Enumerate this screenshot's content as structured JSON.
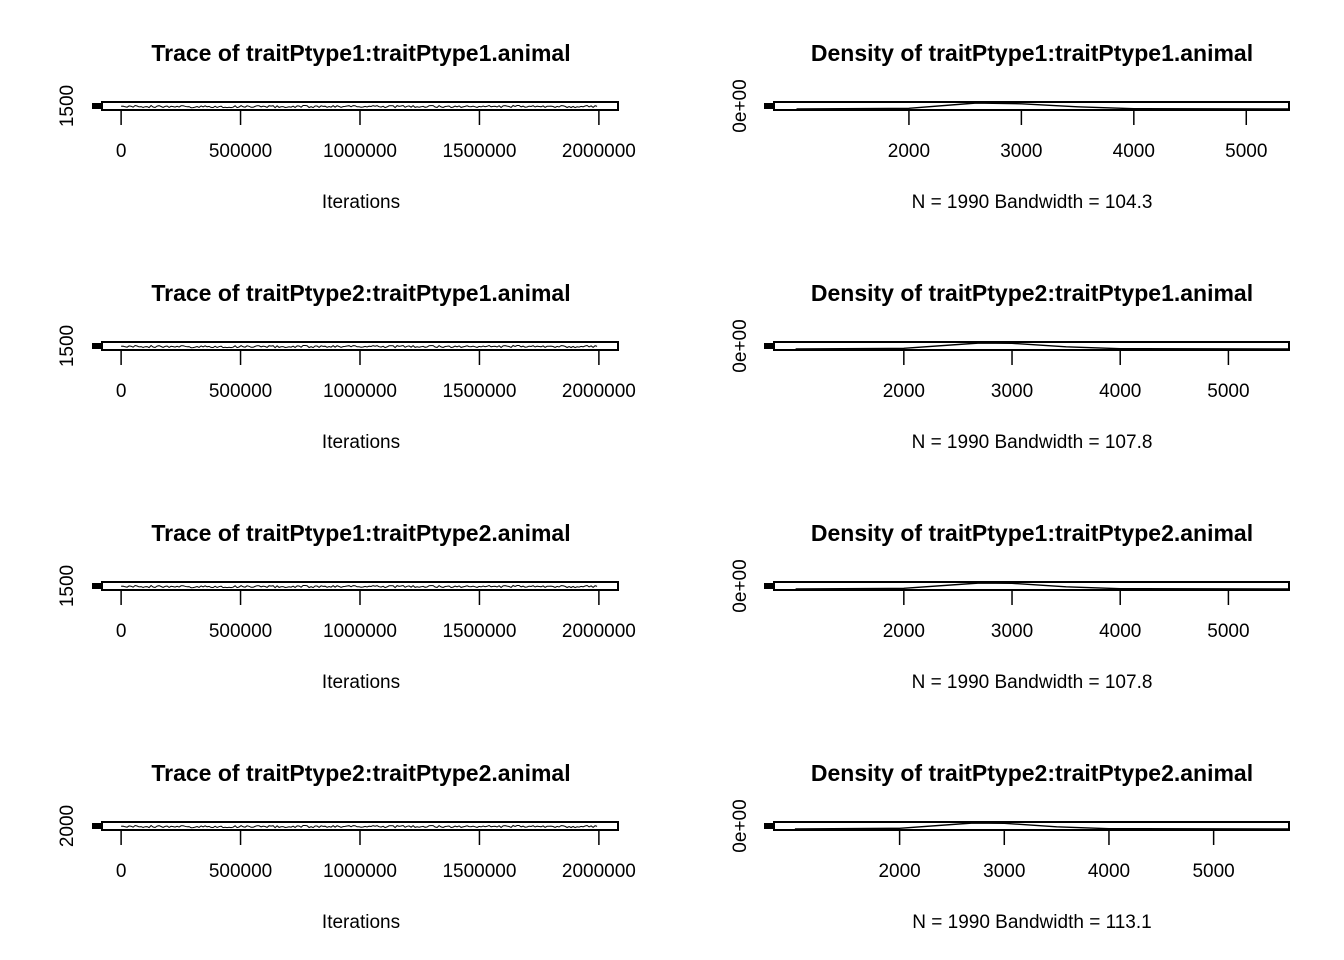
{
  "chart_data": [
    {
      "type": "line",
      "title": "Trace of traitPtype1:traitPtype1.animal",
      "xlabel": "Iterations",
      "xticks": [
        "0",
        "500000",
        "1000000",
        "1500000",
        "2000000"
      ],
      "xtick_values": [
        0,
        500000,
        1000000,
        1500000,
        2000000
      ],
      "xlim": [
        -80000,
        2080000
      ],
      "yticks": [
        "1500"
      ],
      "ytick_values": [
        1500
      ],
      "ylim": [
        -200000,
        2600000
      ],
      "grid": false
    },
    {
      "type": "area",
      "title": "Density of traitPtype1:traitPtype1.animal",
      "xlabel": "N = 1990   Bandwidth = 104.3",
      "xticks": [
        "2000",
        "3000",
        "4000",
        "5000"
      ],
      "xtick_values": [
        2000,
        3000,
        4000,
        5000
      ],
      "xlim": [
        800,
        5380
      ],
      "yticks": [
        "0e+00"
      ],
      "ytick_values": [
        0
      ],
      "curve": {
        "x": [
          1000,
          2000,
          2600,
          3000,
          3500,
          4000,
          5380
        ],
        "density": [
          0,
          5e-05,
          0.0004,
          0.00035,
          0.00015,
          2e-05,
          0
        ]
      },
      "grid": false
    },
    {
      "type": "line",
      "title": "Trace of traitPtype2:traitPtype1.animal",
      "xlabel": "Iterations",
      "xticks": [
        "0",
        "500000",
        "1000000",
        "1500000",
        "2000000"
      ],
      "xtick_values": [
        0,
        500000,
        1000000,
        1500000,
        2000000
      ],
      "xlim": [
        -80000,
        2080000
      ],
      "yticks": [
        "1500"
      ],
      "ytick_values": [
        1500
      ],
      "ylim": [
        -200000,
        2600000
      ],
      "grid": false
    },
    {
      "type": "area",
      "title": "Density of traitPtype2:traitPtype1.animal",
      "xlabel": "N = 1990   Bandwidth = 107.8",
      "xticks": [
        "2000",
        "3000",
        "4000",
        "5000"
      ],
      "xtick_values": [
        2000,
        3000,
        4000,
        5000
      ],
      "xlim": [
        800,
        5560
      ],
      "yticks": [
        "0e+00"
      ],
      "ytick_values": [
        0
      ],
      "curve": {
        "x": [
          1000,
          2000,
          2700,
          3000,
          3500,
          4000,
          5560
        ],
        "density": [
          0,
          5e-05,
          0.0004,
          0.00038,
          0.00015,
          2e-05,
          0
        ]
      },
      "grid": false
    },
    {
      "type": "line",
      "title": "Trace of traitPtype1:traitPtype2.animal",
      "xlabel": "Iterations",
      "xticks": [
        "0",
        "500000",
        "1000000",
        "1500000",
        "2000000"
      ],
      "xtick_values": [
        0,
        500000,
        1000000,
        1500000,
        2000000
      ],
      "xlim": [
        -80000,
        2080000
      ],
      "yticks": [
        "1500"
      ],
      "ytick_values": [
        1500
      ],
      "ylim": [
        -200000,
        2600000
      ],
      "grid": false
    },
    {
      "type": "area",
      "title": "Density of traitPtype1:traitPtype2.animal",
      "xlabel": "N = 1990   Bandwidth = 107.8",
      "xticks": [
        "2000",
        "3000",
        "4000",
        "5000"
      ],
      "xtick_values": [
        2000,
        3000,
        4000,
        5000
      ],
      "xlim": [
        800,
        5560
      ],
      "yticks": [
        "0e+00"
      ],
      "ytick_values": [
        0
      ],
      "curve": {
        "x": [
          1000,
          2000,
          2700,
          3000,
          3500,
          4000,
          5560
        ],
        "density": [
          0,
          5e-05,
          0.0004,
          0.00038,
          0.00015,
          2e-05,
          0
        ]
      },
      "grid": false
    },
    {
      "type": "line",
      "title": "Trace of traitPtype2:traitPtype2.animal",
      "xlabel": "Iterations",
      "xticks": [
        "0",
        "500000",
        "1000000",
        "1500000",
        "2000000"
      ],
      "xtick_values": [
        0,
        500000,
        1000000,
        1500000,
        2000000
      ],
      "xlim": [
        -80000,
        2080000
      ],
      "yticks": [
        "2000"
      ],
      "ytick_values": [
        2000
      ],
      "ylim": [
        -200000,
        2600000
      ],
      "grid": false
    },
    {
      "type": "area",
      "title": "Density of traitPtype2:traitPtype2.animal",
      "xlabel": "N = 1990   Bandwidth = 113.1",
      "xticks": [
        "2000",
        "3000",
        "4000",
        "5000"
      ],
      "xtick_values": [
        2000,
        3000,
        4000,
        5000
      ],
      "xlim": [
        800,
        5720
      ],
      "yticks": [
        "0e+00"
      ],
      "ytick_values": [
        0
      ],
      "curve": {
        "x": [
          1000,
          2000,
          2700,
          3000,
          3500,
          4000,
          5720
        ],
        "density": [
          0,
          5e-05,
          0.0004,
          0.00038,
          0.00015,
          2e-05,
          0
        ]
      },
      "grid": false
    }
  ]
}
